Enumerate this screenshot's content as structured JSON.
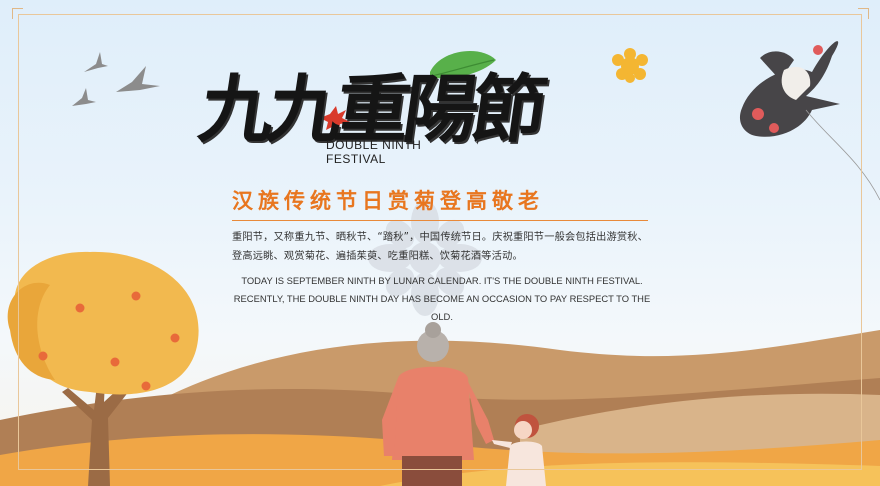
{
  "poster": {
    "title": "九九重陽節",
    "subtitle_en_line1": "DOUBLE NINTH",
    "subtitle_en_line2": "FESTIVAL",
    "heading": "汉族传统节日赏菊登高敬老",
    "paragraph_zh": "重阳节，又称重九节、晒秋节、“踏秋”，中国传统节日。庆祝重阳节一般会包括出游赏秋、登高远眺、观赏菊花、遍插茱萸、吃重阳糕、饮菊花酒等活动。",
    "paragraph_en": "TODAY IS SEPTEMBER NINTH BY LUNAR CALENDAR. IT'S THE DOUBLE NINTH FESTIVAL. RECENTLY, THE DOUBLE NINTH DAY HAS BECOME AN OCCASION TO PAY RESPECT TO THE OLD."
  },
  "colors": {
    "accent_orange": "#e8761f",
    "frame": "#e9c79a",
    "ink": "#151515",
    "tree": "#f2b94f",
    "hill_brown": "#b98a5e",
    "hill_orange": "#f0a646"
  },
  "icons": {
    "lotus_leaf": "leaf-icon",
    "chrysanthemum": "chrysanthemum-icon",
    "maple_leaf": "maple-leaf-icon",
    "birds": "bird-icon",
    "kite": "swallow-kite-icon"
  }
}
